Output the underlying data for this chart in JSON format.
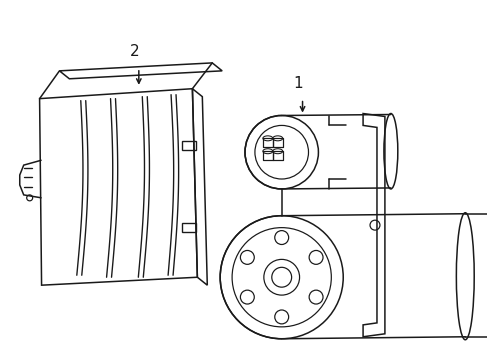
{
  "background_color": "#ffffff",
  "line_color": "#1a1a1a",
  "line_width": 1.1,
  "label_1": "1",
  "label_2": "2",
  "fig_width": 4.89,
  "fig_height": 3.6,
  "dpi": 100
}
